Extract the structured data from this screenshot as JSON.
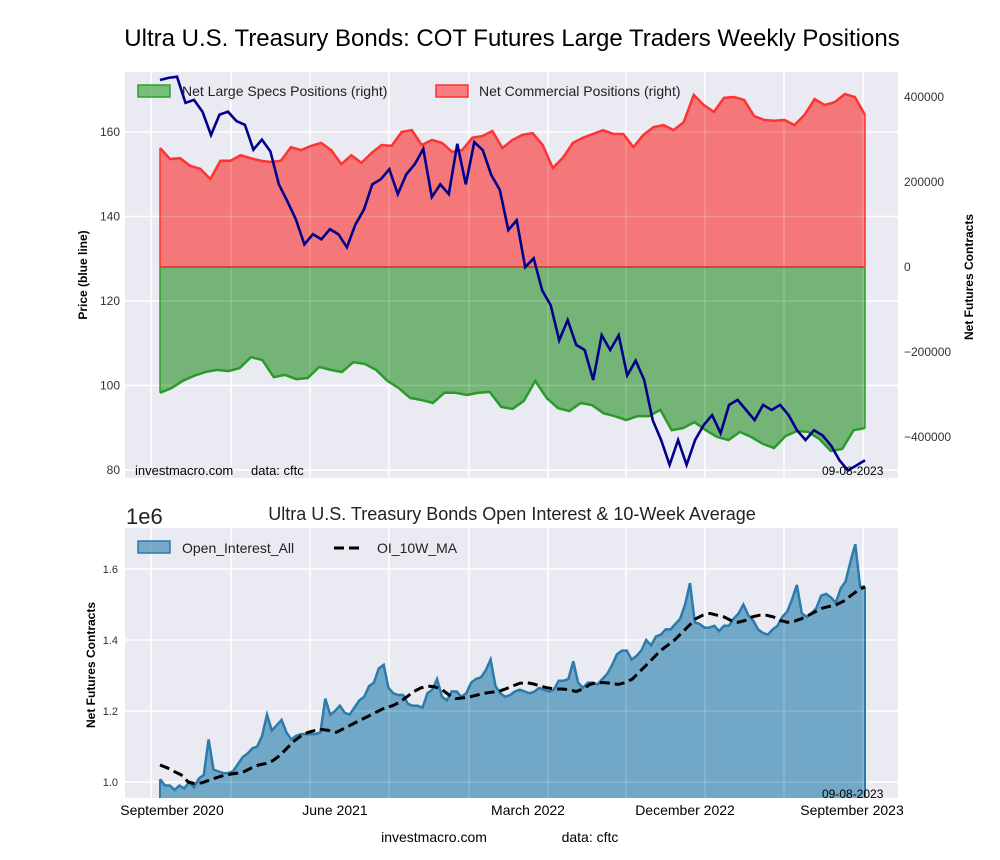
{
  "chart_data": [
    {
      "type": "area",
      "title": "Ultra U.S. Treasury Bonds: COT Futures Large Traders Weekly Positions",
      "ylabel_left": "Price (blue line)",
      "ylabel_right": "Net Futures Contracts",
      "ylim_left": [
        78,
        170
      ],
      "ylim_right": [
        -495000,
        450000
      ],
      "yticks_left": [
        80,
        100,
        120,
        140,
        160
      ],
      "yticks_right": [
        -400000,
        -200000,
        0,
        200000,
        400000
      ],
      "ytick_labels_right": [
        "−400000",
        "−200000",
        "0",
        "200000",
        "400000"
      ],
      "grid": true,
      "legend": {
        "placement": "top-left",
        "entries": [
          "Net Large Specs Positions (right)",
          "Net Commercial Positions (right)"
        ]
      },
      "annotations": {
        "source": "investmacro.com",
        "data": "data: cftc",
        "date": "09-08-2023"
      },
      "x_start": "2020-09",
      "x_end": "2023-09-08",
      "colors": {
        "specs": "#2ca02c",
        "commercial": "#ff3333",
        "price": "#00008b"
      },
      "series": [
        {
          "name": "Net Commercial Positions (right)",
          "axis": "right",
          "values": [
            280000,
            254000,
            256000,
            238000,
            231000,
            207000,
            250000,
            250000,
            263000,
            256000,
            250000,
            247000,
            250000,
            282000,
            275000,
            285000,
            292000,
            275000,
            242000,
            263000,
            245000,
            268000,
            287000,
            285000,
            318000,
            322000,
            287000,
            299000,
            292000,
            271000,
            275000,
            304000,
            308000,
            320000,
            280000,
            299000,
            311000,
            315000,
            287000,
            233000,
            257000,
            292000,
            304000,
            313000,
            322000,
            313000,
            313000,
            282000,
            311000,
            329000,
            334000,
            322000,
            341000,
            405000,
            381000,
            365000,
            398000,
            400000,
            393000,
            355000,
            346000,
            344000,
            346000,
            334000,
            358000,
            395000,
            381000,
            388000,
            407000,
            400000,
            358000
          ]
        },
        {
          "name": "Net Large Specs Positions (right)",
          "axis": "right",
          "values": [
            -296000,
            -285000,
            -268000,
            -256000,
            -247000,
            -242000,
            -245000,
            -238000,
            -212000,
            -219000,
            -259000,
            -254000,
            -264000,
            -261000,
            -235000,
            -242000,
            -247000,
            -224000,
            -228000,
            -242000,
            -268000,
            -285000,
            -308000,
            -313000,
            -320000,
            -296000,
            -296000,
            -301000,
            -296000,
            -294000,
            -329000,
            -334000,
            -315000,
            -268000,
            -308000,
            -332000,
            -339000,
            -320000,
            -325000,
            -344000,
            -351000,
            -360000,
            -351000,
            -351000,
            -336000,
            -384000,
            -379000,
            -365000,
            -384000,
            -400000,
            -407000,
            -388000,
            -400000,
            -416000,
            -426000,
            -398000,
            -386000,
            -388000,
            -405000,
            -433000,
            -428000,
            -384000,
            -379000
          ]
        },
        {
          "name": "Price (blue line)",
          "axis": "left",
          "values": [
            172.3,
            172.8,
            173.1,
            166.9,
            167.6,
            164.8,
            159.3,
            164.1,
            164.8,
            162.6,
            161.7,
            155.8,
            158.2,
            155.4,
            147.6,
            143.6,
            139.3,
            133.4,
            135.8,
            134.6,
            137.0,
            135.8,
            132.7,
            138.1,
            141.6,
            147.6,
            148.8,
            151.2,
            145.3,
            150.0,
            152.4,
            156.0,
            144.6,
            147.6,
            145.3,
            157.2,
            147.6,
            157.6,
            155.7,
            149.8,
            146.3,
            136.8,
            139.1,
            128.0,
            130.1,
            122.5,
            119.0,
            110.7,
            115.5,
            109.6,
            108.4,
            101.3,
            111.9,
            108.4,
            111.9,
            102.4,
            105.9,
            101.3,
            91.8,
            87.1,
            81.2,
            87.1,
            81.2,
            87.1,
            90.6,
            93.0,
            88.7,
            95.4,
            96.6,
            94.2,
            91.8,
            95.4,
            94.2,
            95.4,
            93.0,
            89.4,
            87.1,
            89.4,
            88.2,
            85.8,
            82.3,
            79.9,
            81.1,
            82.3
          ]
        }
      ]
    },
    {
      "type": "area",
      "title": "Ultra U.S. Treasury Bonds Open Interest & 10-Week Average",
      "ylabel": "Net Futures Contracts",
      "scale_label": "1e6",
      "ylim": [
        0.955,
        1.715
      ],
      "yticks": [
        1.0,
        1.2,
        1.4,
        1.6
      ],
      "xtick_labels": [
        "September 2020",
        "June 2021",
        "March 2022",
        "December 2022",
        "September 2023"
      ],
      "grid": true,
      "legend": {
        "placement": "top-left",
        "entries": [
          "Open_Interest_All",
          "OI_10W_MA"
        ]
      },
      "annotations": {
        "source": "investmacro.com",
        "data": "data: cftc",
        "date": "09-08-2023"
      },
      "colors": {
        "oi": "#2b7bab",
        "ma": "#000000"
      },
      "series": [
        {
          "name": "Open_Interest_All",
          "values": [
            1.008,
            0.99,
            0.99,
            0.978,
            0.99,
            0.982,
            1.0,
            0.985,
            1.01,
            1.02,
            1.12,
            1.035,
            1.03,
            1.025,
            1.025,
            1.03,
            1.05,
            1.07,
            1.08,
            1.095,
            1.1,
            1.13,
            1.19,
            1.145,
            1.16,
            1.175,
            1.14,
            1.12,
            1.13,
            1.135,
            1.135,
            1.135,
            1.135,
            1.14,
            1.235,
            1.19,
            1.2,
            1.215,
            1.195,
            1.19,
            1.21,
            1.23,
            1.24,
            1.27,
            1.28,
            1.32,
            1.33,
            1.265,
            1.25,
            1.245,
            1.245,
            1.22,
            1.215,
            1.215,
            1.21,
            1.25,
            1.26,
            1.29,
            1.24,
            1.23,
            1.255,
            1.255,
            1.24,
            1.25,
            1.28,
            1.29,
            1.295,
            1.315,
            1.345,
            1.27,
            1.25,
            1.24,
            1.245,
            1.255,
            1.26,
            1.255,
            1.25,
            1.255,
            1.265,
            1.26,
            1.255,
            1.26,
            1.285,
            1.285,
            1.29,
            1.34,
            1.28,
            1.265,
            1.28,
            1.28,
            1.275,
            1.29,
            1.305,
            1.33,
            1.36,
            1.37,
            1.37,
            1.345,
            1.355,
            1.37,
            1.4,
            1.385,
            1.41,
            1.415,
            1.43,
            1.43,
            1.445,
            1.46,
            1.5,
            1.56,
            1.45,
            1.445,
            1.435,
            1.435,
            1.44,
            1.425,
            1.44,
            1.44,
            1.46,
            1.475,
            1.5,
            1.47,
            1.455,
            1.43,
            1.42,
            1.415,
            1.43,
            1.44,
            1.465,
            1.48,
            1.515,
            1.555,
            1.475,
            1.465,
            1.475,
            1.49,
            1.525,
            1.53,
            1.52,
            1.505,
            1.545,
            1.565,
            1.62,
            1.67,
            1.55,
            1.55
          ]
        },
        {
          "name": "OI_10W_MA",
          "values": [
            1.048,
            1.04,
            1.03,
            1.02,
            1.0,
            0.995,
            0.998,
            1.005,
            1.012,
            1.018,
            1.022,
            1.025,
            1.03,
            1.04,
            1.048,
            1.052,
            1.06,
            1.075,
            1.095,
            1.115,
            1.13,
            1.14,
            1.145,
            1.148,
            1.145,
            1.14,
            1.15,
            1.16,
            1.17,
            1.18,
            1.19,
            1.2,
            1.21,
            1.215,
            1.225,
            1.24,
            1.255,
            1.265,
            1.27,
            1.268,
            1.26,
            1.245,
            1.235,
            1.237,
            1.24,
            1.245,
            1.25,
            1.253,
            1.255,
            1.262,
            1.27,
            1.278,
            1.28,
            1.276,
            1.27,
            1.265,
            1.262,
            1.262,
            1.26,
            1.255,
            1.262,
            1.275,
            1.28,
            1.28,
            1.278,
            1.275,
            1.28,
            1.29,
            1.31,
            1.33,
            1.35,
            1.37,
            1.385,
            1.4,
            1.42,
            1.44,
            1.46,
            1.47,
            1.475,
            1.47,
            1.465,
            1.455,
            1.45,
            1.455,
            1.465,
            1.47,
            1.47,
            1.465,
            1.455,
            1.45,
            1.453,
            1.46,
            1.47,
            1.48,
            1.49,
            1.495,
            1.5,
            1.51,
            1.525,
            1.54,
            1.55
          ]
        }
      ]
    }
  ]
}
